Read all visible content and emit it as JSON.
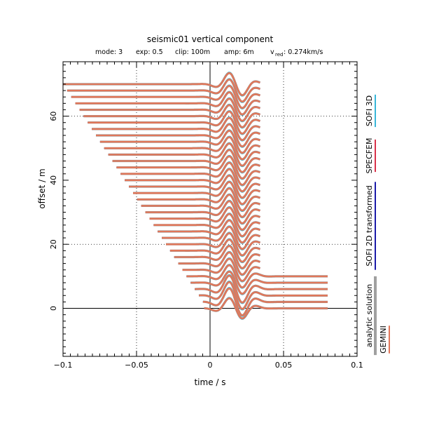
{
  "chart_data": {
    "type": "line",
    "title": "seismic01 vertical component",
    "subtitle": {
      "mode": "mode: 3",
      "exp": "exp: 0.5",
      "clip": "clip: 100m",
      "amp": "amp: 6m",
      "vred_symbol": "v",
      "vred_sub": "red",
      "vred_value": ": 0.274km/s"
    },
    "xlabel": "time / s",
    "ylabel": "offset / m",
    "xlim": [
      -0.1,
      0.1
    ],
    "ylim": [
      -15,
      77
    ],
    "xticks": [
      -0.1,
      -0.05,
      0,
      0.05,
      0.1
    ],
    "xtick_labels": [
      "−0.1",
      "−0.05",
      "0",
      "0.05",
      "0.1"
    ],
    "yticks": [
      0,
      20,
      40,
      60
    ],
    "ytick_labels": [
      "0",
      "20",
      "40",
      "60"
    ],
    "grid": "dotted",
    "offsets": [
      0,
      2,
      4,
      6,
      8,
      10,
      12,
      14,
      16,
      18,
      20,
      22,
      24,
      26,
      28,
      30,
      32,
      34,
      36,
      38,
      40,
      42,
      44,
      46,
      48,
      50,
      52,
      54,
      56,
      58,
      60,
      62,
      64,
      66,
      68,
      70
    ],
    "series": [
      {
        "name": "SOFI 3D",
        "color": "#38b6d8"
      },
      {
        "name": "SPECFEM",
        "color": "#d8324a"
      },
      {
        "name": "SOFI 2D transformed",
        "color": "#1a1aa8"
      },
      {
        "name": "analytic solution",
        "color": "#a0a0a0"
      },
      {
        "name": "GEMINI",
        "color": "#e0775a"
      }
    ],
    "legend_position": "right"
  }
}
